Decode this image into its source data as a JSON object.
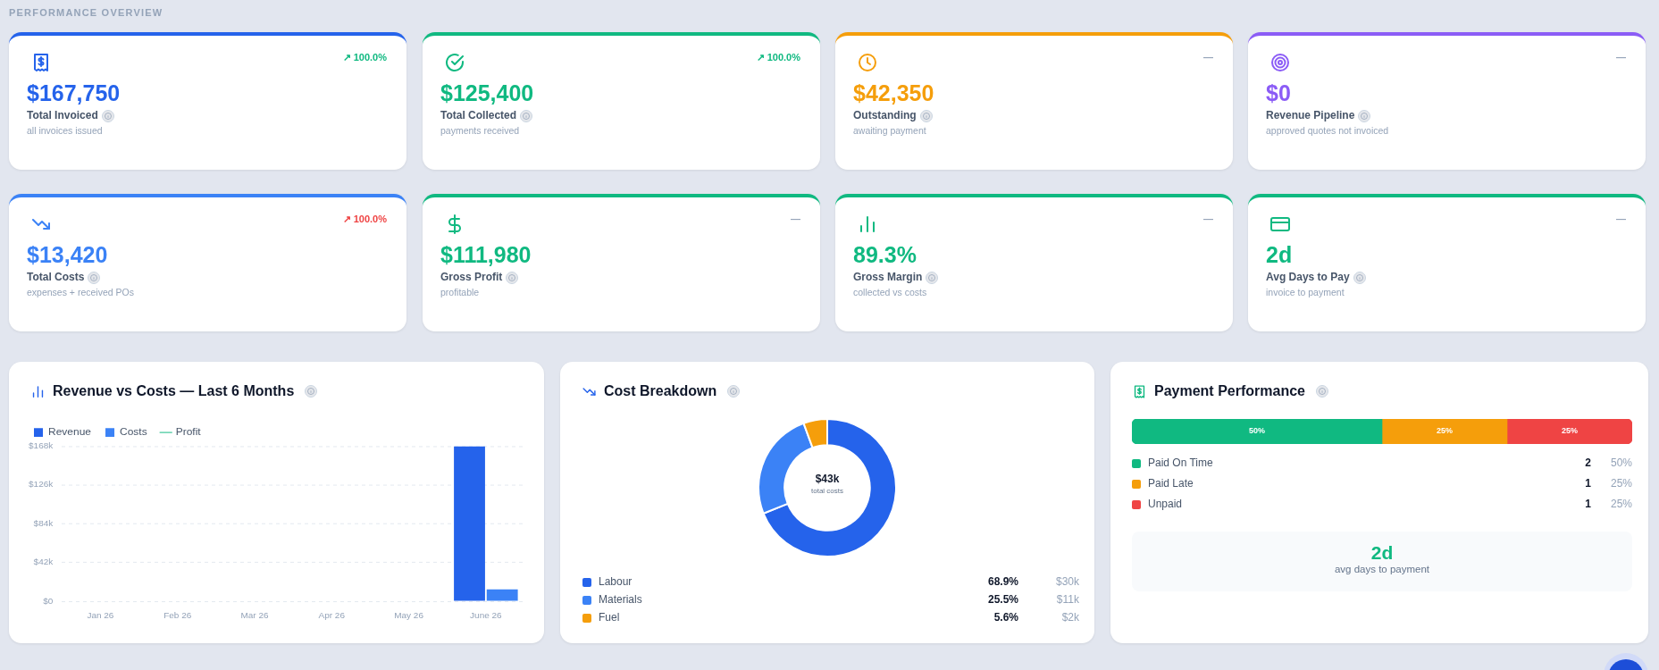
{
  "chart_data": [
    {
      "type": "other",
      "title": "PERFORMANCE OVERVIEW"
    },
    {
      "type": "other",
      "title": "Total Invoiced",
      "subtitle": "all invoices issued",
      "annotations": [
        "$167,750",
        "↗ 100.0%"
      ],
      "colors": [
        "#2563eb",
        "#10b981"
      ]
    },
    {
      "type": "other",
      "title": "Total Collected",
      "subtitle": "payments received",
      "annotations": [
        "$125,400",
        "↗ 100.0%"
      ],
      "colors": [
        "#10b981",
        "#10b981"
      ]
    },
    {
      "type": "other",
      "title": "Outstanding",
      "subtitle": "awaiting payment",
      "annotations": [
        "$42,350",
        "—"
      ],
      "colors": [
        "#f59e0b",
        "#94a3b8"
      ]
    },
    {
      "type": "other",
      "title": "Revenue Pipeline",
      "subtitle": "approved quotes not invoiced",
      "annotations": [
        "$0",
        "—"
      ],
      "colors": [
        "#8b5cf6",
        "#94a3b8"
      ]
    },
    {
      "type": "other",
      "title": "Total Costs",
      "subtitle": "expenses + received POs",
      "annotations": [
        "$13,420",
        "↗ 100.0%"
      ],
      "colors": [
        "#3b82f6",
        "#ef4444"
      ]
    },
    {
      "type": "other",
      "title": "Gross Profit",
      "subtitle": "profitable",
      "annotations": [
        "$111,980",
        "—"
      ],
      "colors": [
        "#10b981",
        "#94a3b8"
      ]
    },
    {
      "type": "other",
      "title": "Gross Margin",
      "subtitle": "collected vs costs",
      "annotations": [
        "89.3%",
        "—"
      ],
      "colors": [
        "#10b981",
        "#94a3b8"
      ]
    },
    {
      "type": "other",
      "title": "Avg Days to Pay",
      "subtitle": "invoice to payment",
      "annotations": [
        "2d",
        "—"
      ],
      "colors": [
        "#10b981",
        "#94a3b8"
      ]
    },
    {
      "type": "bar",
      "title": "Revenue vs Costs — Last 6 Months",
      "categories": [
        "Jan 26",
        "Feb 26",
        "Mar 26",
        "Apr 26",
        "May 26",
        "June 26"
      ],
      "series": [
        {
          "name": "Revenue",
          "color": "#2563eb",
          "values": [
            0,
            0,
            0,
            0,
            0,
            168000
          ]
        },
        {
          "name": "Costs",
          "color": "#3b82f6",
          "values": [
            0,
            0,
            0,
            0,
            0,
            13000
          ]
        },
        {
          "name": "Profit",
          "type": "line",
          "color": "#10b981",
          "values": [
            null,
            null,
            null,
            null,
            null,
            null
          ]
        }
      ],
      "ylim": [
        0,
        168000
      ],
      "yticks": [
        {
          "value": 0,
          "label": "$0"
        },
        {
          "value": 42000,
          "label": "$42k"
        },
        {
          "value": 84000,
          "label": "$84k"
        },
        {
          "value": 126000,
          "label": "$126k"
        },
        {
          "value": 168000,
          "label": "$168k"
        }
      ],
      "grid": "y",
      "legend": "top left"
    },
    {
      "type": "donut",
      "title": "Cost Breakdown",
      "categories": [
        "Labour",
        "Materials",
        "Fuel"
      ],
      "values": [
        68.9,
        25.5,
        5.6
      ],
      "colors": [
        "#2563eb",
        "#3b82f6",
        "#f59e0b"
      ],
      "value_labels": [
        "68.9%",
        "25.5%",
        "5.6%"
      ],
      "legend": "bottom",
      "annotations": [
        "$43k",
        "total costs",
        "$30k",
        "$11k",
        "$2k"
      ]
    },
    {
      "type": "bar",
      "title": "Payment Performance",
      "orientation": "horizontal",
      "stacked": true,
      "tick_labels": false,
      "legend": "bottom",
      "categories": [
        null
      ],
      "series": [
        {
          "name": "Paid On Time",
          "color": "#10b981",
          "values": [
            50
          ],
          "value_labels": [
            "50%"
          ]
        },
        {
          "name": "Paid Late",
          "color": "#f59e0b",
          "values": [
            25
          ],
          "value_labels": [
            "25%"
          ]
        },
        {
          "name": "Unpaid",
          "color": "#ef4444",
          "values": [
            25
          ],
          "value_labels": [
            "25%"
          ]
        }
      ],
      "annotations": [
        "2",
        "1",
        "1",
        "2d",
        "avg days to payment"
      ]
    }
  ]
}
